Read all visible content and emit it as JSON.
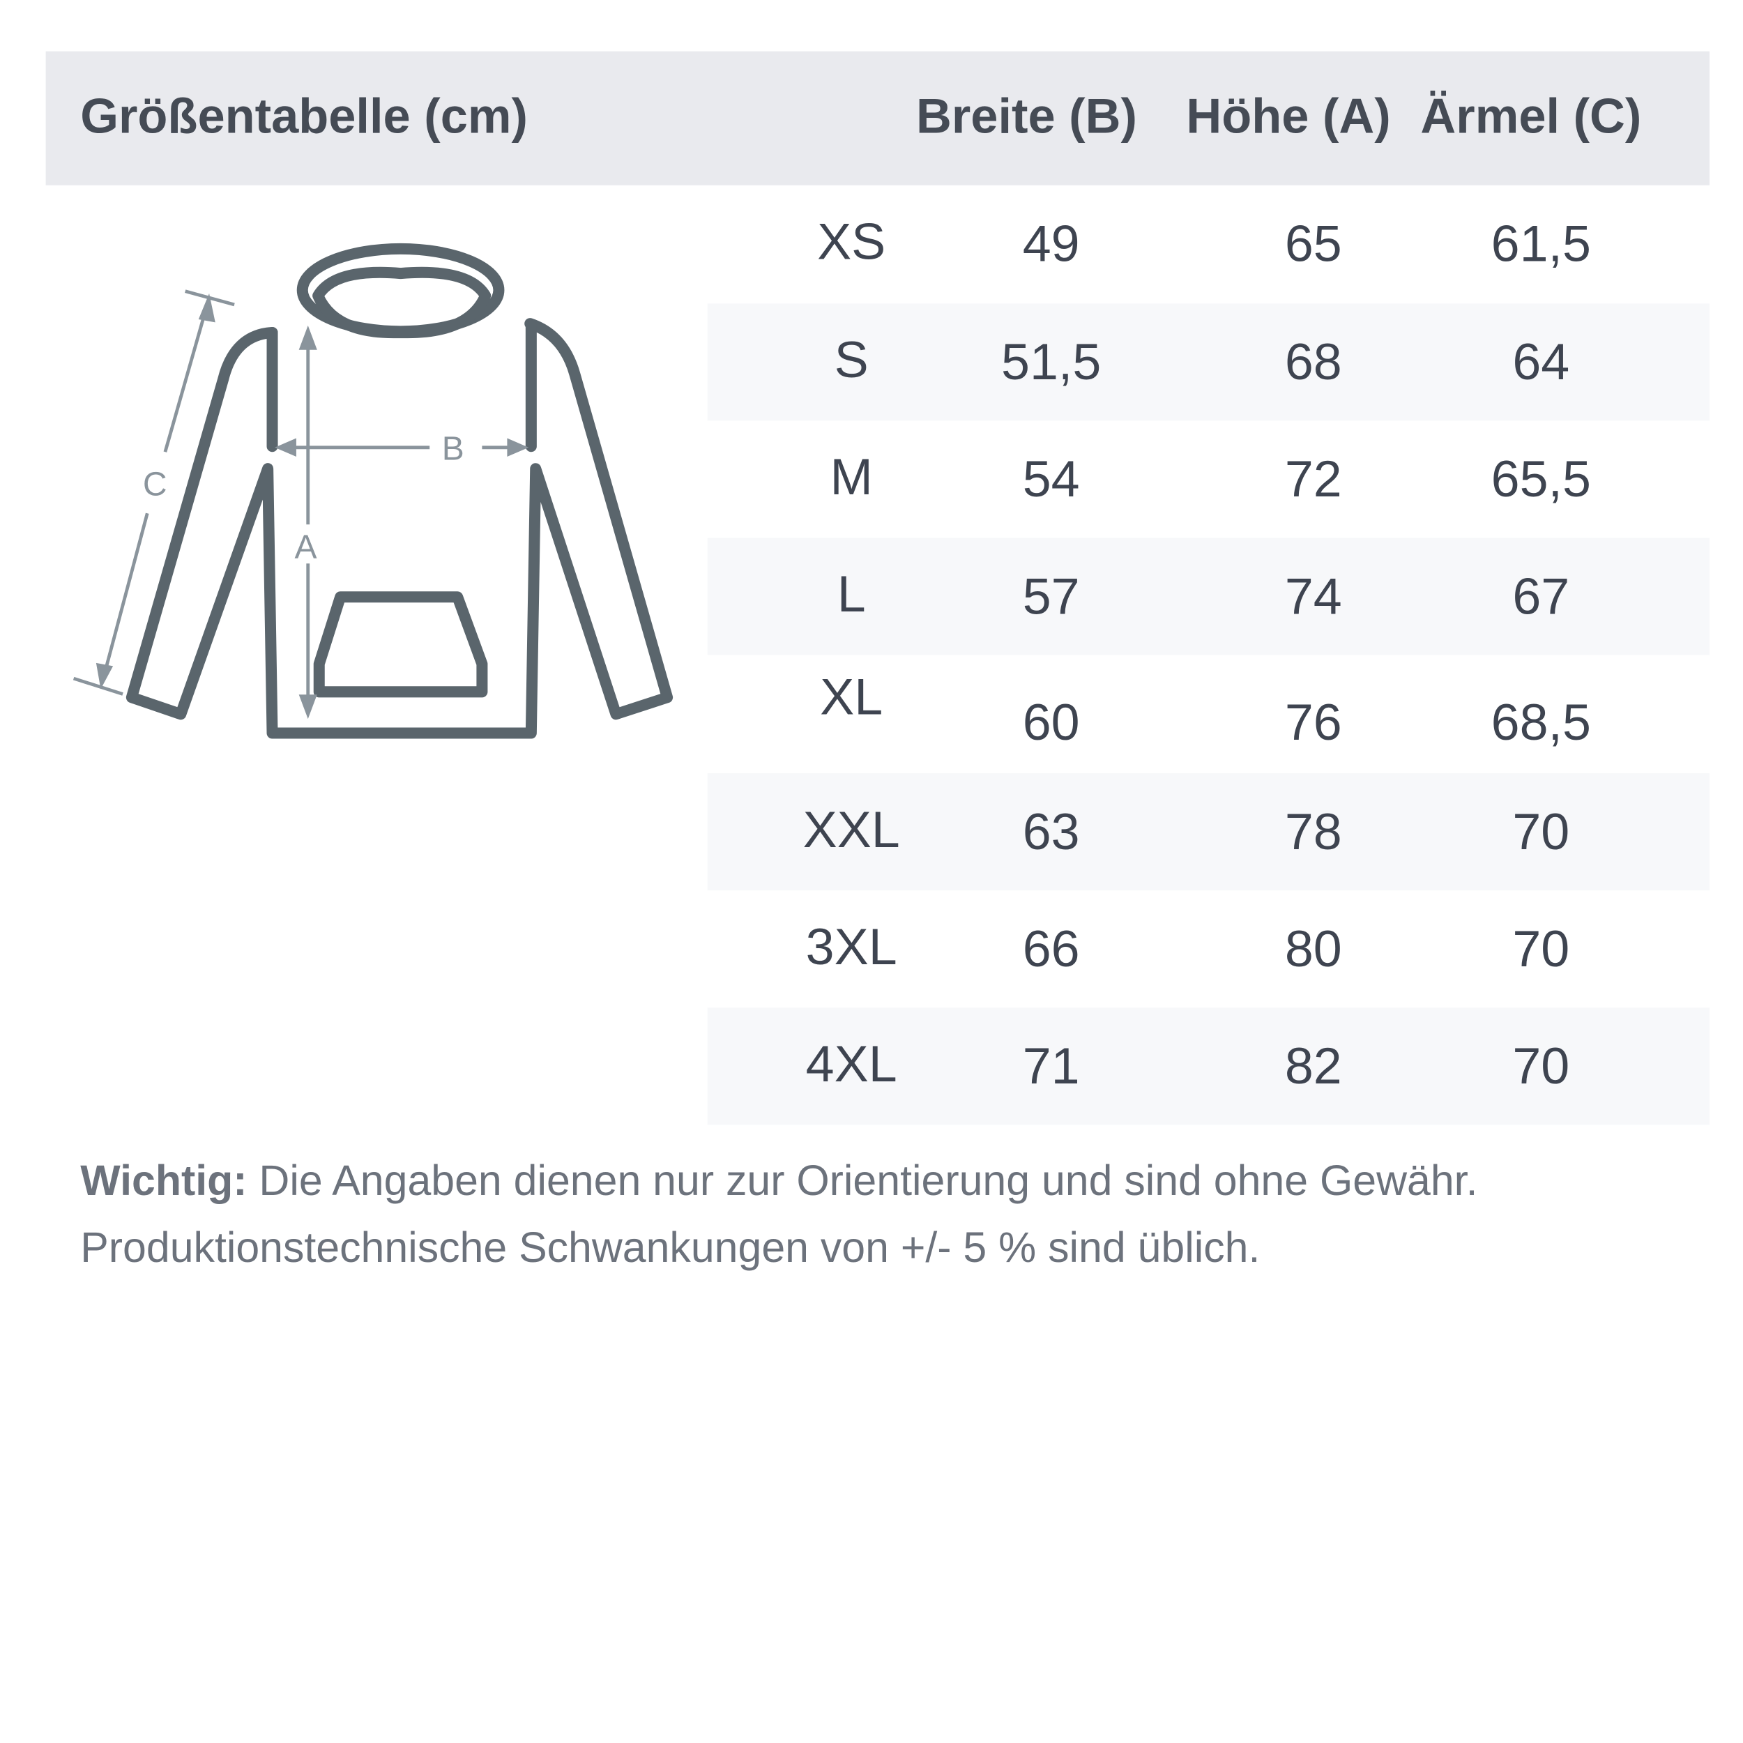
{
  "header": {
    "title": "Größentabelle (cm)",
    "columns": [
      "Breite (B)",
      "Höhe (A)",
      "Ärmel (C)"
    ]
  },
  "rows": [
    {
      "size": "XS",
      "breite": "49",
      "hoehe": "65",
      "aermel": "61,5"
    },
    {
      "size": "S",
      "breite": "51,5",
      "hoehe": "68",
      "aermel": "64"
    },
    {
      "size": "M",
      "breite": "54",
      "hoehe": "72",
      "aermel": "65,5"
    },
    {
      "size": "L",
      "breite": "57",
      "hoehe": "74",
      "aermel": "67"
    },
    {
      "size": "XL",
      "breite": "60",
      "hoehe": "76",
      "aermel": "68,5"
    },
    {
      "size": "XXL",
      "breite": "63",
      "hoehe": "78",
      "aermel": "70"
    },
    {
      "size": "3XL",
      "breite": "66",
      "hoehe": "80",
      "aermel": "70"
    },
    {
      "size": "4XL",
      "breite": "71",
      "hoehe": "82",
      "aermel": "70"
    }
  ],
  "diagram": {
    "label_a": "A",
    "label_b": "B",
    "label_c": "C",
    "outline_color": "#5a656c",
    "arrow_color": "#8a949c"
  },
  "note": {
    "label": "Wichtig:",
    "line1": " Die Angaben dienen nur zur Orientierung und sind ohne Gewähr.",
    "line2": "Produktionstechnische Schwankungen von +/- 5 % sind üblich."
  }
}
